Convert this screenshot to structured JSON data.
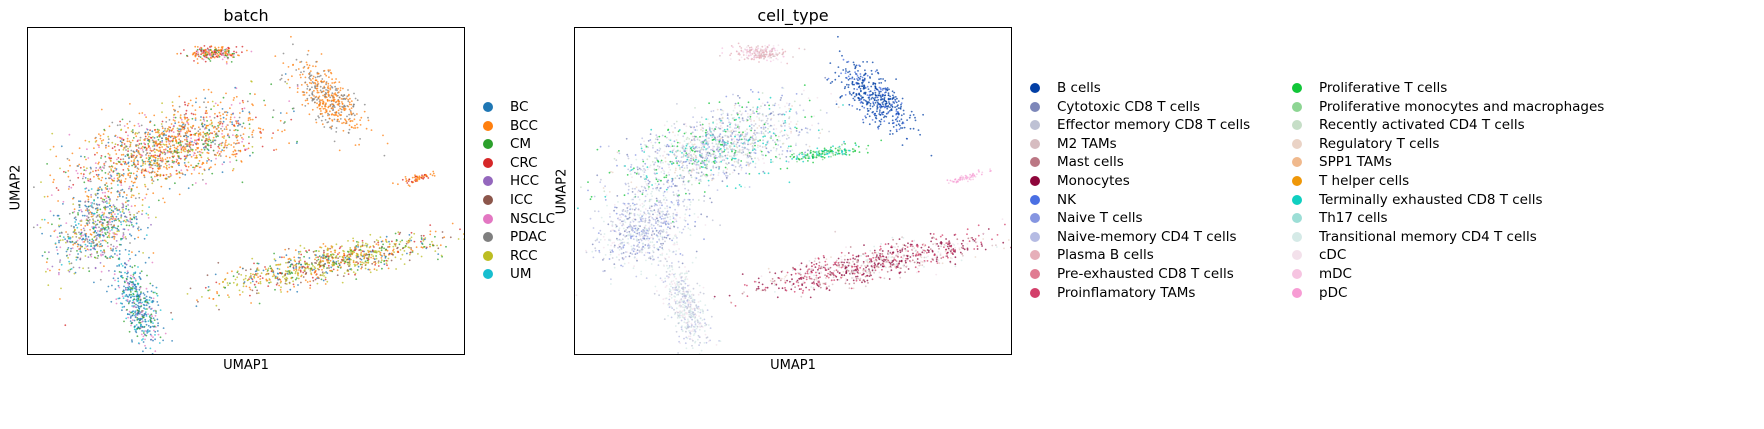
{
  "chart_data": [
    {
      "type": "scatter",
      "title": "batch",
      "xlabel": "UMAP1",
      "ylabel": "UMAP2",
      "grid": false,
      "legend_position": "right",
      "categories": [
        "BC",
        "BCC",
        "CM",
        "CRC",
        "HCC",
        "ICC",
        "NSCLC",
        "PDAC",
        "RCC",
        "UM"
      ],
      "colors": [
        "#1f77b4",
        "#ff7f0e",
        "#2ca02c",
        "#d62728",
        "#9467bd",
        "#8c564b",
        "#e377c2",
        "#7f7f7f",
        "#bcbd22",
        "#17becf"
      ]
    },
    {
      "type": "scatter",
      "title": "cell_type",
      "xlabel": "UMAP1",
      "ylabel": "UMAP2",
      "grid": false,
      "legend_position": "right",
      "categories": [
        "B cells",
        "Cytotoxic CD8 T cells",
        "Effector memory CD8 T cells",
        "M2 TAMs",
        "Mast cells",
        "Monocytes",
        "NK",
        "Naive T cells",
        "Naive-memory CD4 T cells",
        "Plasma B cells",
        "Pre-exhausted CD8 T cells",
        "Proinflamatory TAMs",
        "Proliferative T cells",
        "Proliferative monocytes and macrophages",
        "Recently activated CD4 T cells",
        "Regulatory T cells",
        "SPP1 TAMs",
        "T helper cells",
        "Terminally exhausted CD8 T cells",
        "Th17 cells",
        "Transitional memory CD4 T cells",
        "cDC",
        "mDC",
        "pDC"
      ],
      "colors": [
        "#023fa5",
        "#7d87b9",
        "#bec1d4",
        "#d6bcc0",
        "#bb7784",
        "#8e063b",
        "#4a6fe3",
        "#8595e1",
        "#b5bbe3",
        "#e6afb9",
        "#e07b91",
        "#d33f6a",
        "#11c638",
        "#8dd593",
        "#c6dec7",
        "#ead3c6",
        "#f0b98d",
        "#ef9708",
        "#0fcfc0",
        "#9cded6",
        "#d5eae7",
        "#f3e1eb",
        "#f6c4e1",
        "#f79cd4"
      ]
    }
  ]
}
